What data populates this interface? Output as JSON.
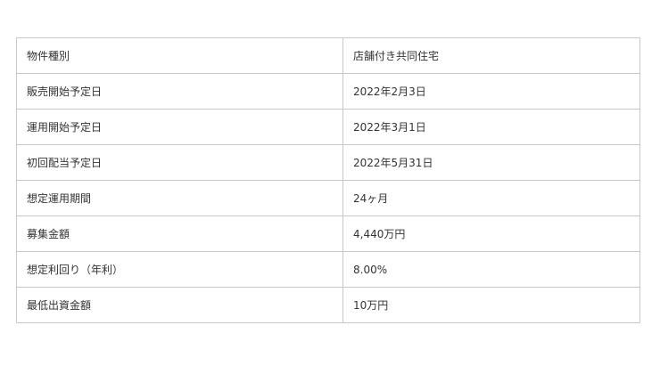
{
  "rows": [
    {
      "label": "物件種別",
      "value": "店舗付き共同住宅"
    },
    {
      "label": "販売開始予定日",
      "value": "2022年2月3日"
    },
    {
      "label": "運用開始予定日",
      "value": "2022年3月1日"
    },
    {
      "label": "初回配当予定日",
      "value": "2022年5月31日"
    },
    {
      "label": "想定運用期間",
      "value": "24ヶ月"
    },
    {
      "label": "募集金額",
      "value": "4,440万円"
    },
    {
      "label": "想定利回り（年利）",
      "value": "8.00%"
    },
    {
      "label": "最低出資金額",
      "value": "10万円"
    }
  ]
}
